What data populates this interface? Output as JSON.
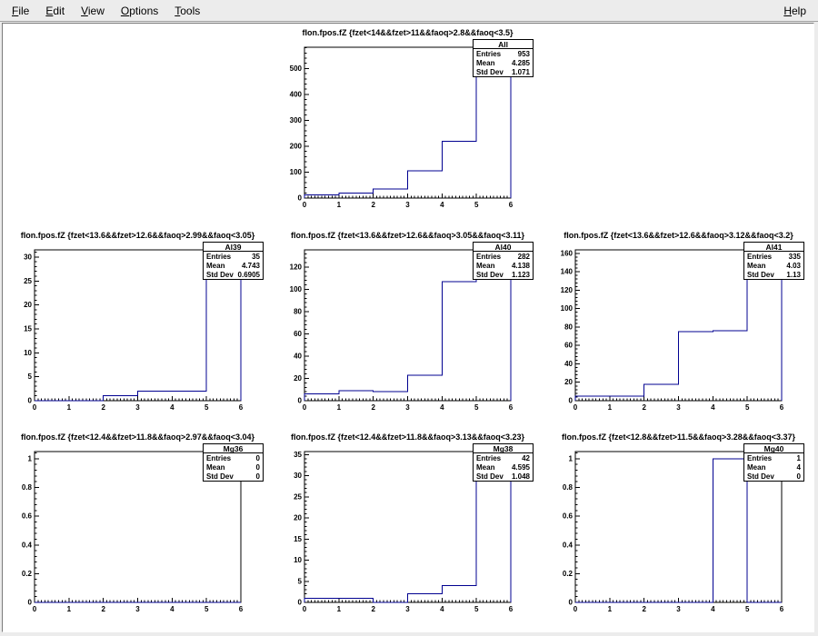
{
  "window": {
    "menu_items": [
      "File",
      "Edit",
      "View",
      "Options",
      "Tools"
    ],
    "help_item": "Help"
  },
  "stats_labels": {
    "entries": "Entries",
    "mean": "Mean",
    "std_dev": "Std Dev"
  },
  "colors": {
    "hist_line": "#000090",
    "axis": "#000000",
    "menu_bg": "#ececec",
    "canvas_bg": "#ffffff",
    "stats_bg": "#ffffff"
  },
  "chart_data": [
    {
      "type": "histogram-step",
      "name": "All",
      "row": 0,
      "col": 1,
      "title": "fIon.fpos.fZ {fzet<14&&fzet>11&&faoq>2.8&&faoq<3.5}",
      "entries": "953",
      "mean": "4.285",
      "std_dev": "1.071",
      "x_min": 0,
      "x_max": 6,
      "x_major_step": 1,
      "y_min": 0,
      "y_max": 582,
      "y_major_step": 100,
      "bin_low_edges": [
        0,
        1,
        2,
        3,
        4,
        5
      ],
      "bin_width": 1,
      "bins": [
        12,
        20,
        35,
        105,
        220,
        555
      ]
    },
    {
      "type": "histogram-step",
      "name": "Al39",
      "row": 1,
      "col": 0,
      "title": "fIon.fpos.fZ {fzet<13.6&&fzet>12.6&&faoq>2.99&&faoq<3.05}",
      "entries": "35",
      "mean": "4.743",
      "std_dev": "0.6905",
      "x_min": 0,
      "x_max": 6,
      "x_major_step": 1,
      "y_min": 0,
      "y_max": 31.5,
      "y_major_step": 5,
      "bin_low_edges": [
        0,
        1,
        2,
        3,
        4,
        5
      ],
      "bin_width": 1,
      "bins": [
        0,
        0,
        1,
        2,
        2,
        30
      ]
    },
    {
      "type": "histogram-step",
      "name": "Al40",
      "row": 1,
      "col": 1,
      "title": "fIon.fpos.fZ {fzet<13.6&&fzet>12.6&&faoq>3.05&&faoq<3.11}",
      "entries": "282",
      "mean": "4.138",
      "std_dev": "1.123",
      "x_min": 0,
      "x_max": 6,
      "x_major_step": 1,
      "y_min": 0,
      "y_max": 135.5,
      "y_major_step": 20,
      "bin_low_edges": [
        0,
        1,
        2,
        3,
        4,
        5
      ],
      "bin_width": 1,
      "bins": [
        6,
        9,
        8,
        23,
        107,
        129
      ]
    },
    {
      "type": "histogram-step",
      "name": "Al41",
      "row": 1,
      "col": 2,
      "title": "fIon.fpos.fZ {fzet<13.6&&fzet>12.6&&faoq>3.12&&faoq<3.2}",
      "entries": "335",
      "mean": "4.03",
      "std_dev": "1.13",
      "x_min": 0,
      "x_max": 6,
      "x_major_step": 1,
      "y_min": 0,
      "y_max": 163.8,
      "y_major_step": 20,
      "bin_low_edges": [
        0,
        1,
        2,
        3,
        4,
        5
      ],
      "bin_width": 1,
      "bins": [
        5,
        5,
        18,
        75,
        76,
        156
      ]
    },
    {
      "type": "histogram-step",
      "name": "Mg36",
      "row": 2,
      "col": 0,
      "title": "fIon.fpos.fZ {fzet<12.4&&fzet>11.8&&faoq>2.97&&faoq<3.04}",
      "entries": "0",
      "mean": "0",
      "std_dev": "0",
      "x_min": 0,
      "x_max": 6,
      "x_major_step": 1,
      "y_min": 0,
      "y_max": 1.05,
      "y_major_step": 0.2,
      "bin_low_edges": [
        0,
        1,
        2,
        3,
        4,
        5
      ],
      "bin_width": 1,
      "bins": [
        0,
        0,
        0,
        0,
        0,
        0
      ]
    },
    {
      "type": "histogram-step",
      "name": "Mg38",
      "row": 2,
      "col": 1,
      "title": "fIon.fpos.fZ {fzet<12.4&&fzet>11.8&&faoq>3.13&&faoq<3.23}",
      "entries": "42",
      "mean": "4.595",
      "std_dev": "1.048",
      "x_min": 0,
      "x_max": 6,
      "x_major_step": 1,
      "y_min": 0,
      "y_max": 35.7,
      "y_major_step": 5,
      "bin_low_edges": [
        0,
        1,
        2,
        3,
        4,
        5
      ],
      "bin_width": 1,
      "bins": [
        1,
        1,
        0,
        2,
        4,
        34
      ]
    },
    {
      "type": "histogram-step",
      "name": "Mg40",
      "row": 2,
      "col": 2,
      "title": "fIon.fpos.fZ {fzet<12.8&&fzet>11.5&&faoq>3.28&&faoq<3.37}",
      "entries": "1",
      "mean": "4",
      "std_dev": "0",
      "x_min": 0,
      "x_max": 6,
      "x_major_step": 1,
      "y_min": 0,
      "y_max": 1.05,
      "y_major_step": 0.2,
      "bin_low_edges": [
        0,
        1,
        2,
        3,
        4,
        5
      ],
      "bin_width": 1,
      "bins": [
        0,
        0,
        0,
        0,
        1,
        0
      ]
    }
  ]
}
